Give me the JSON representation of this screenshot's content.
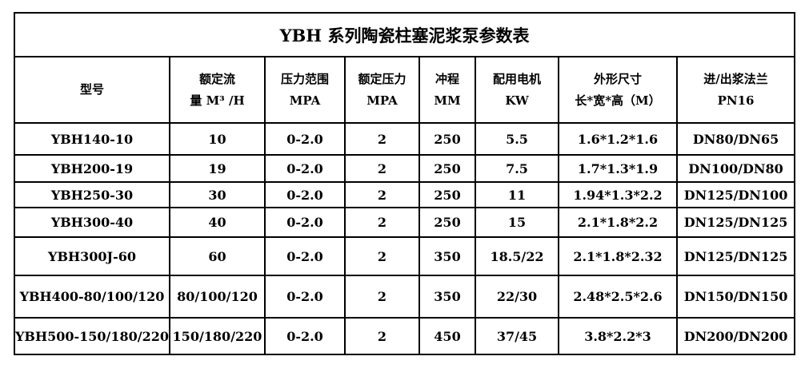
{
  "colors": {
    "background": "#ffffff",
    "border": "#000000",
    "text": "#000000"
  },
  "table": {
    "title": "YBH 系列陶瓷柱塞泥浆泵参数表",
    "columns": [
      {
        "line1": "型号",
        "line2": ""
      },
      {
        "line1": "额定流",
        "line2": "量 M³ /H"
      },
      {
        "line1": "压力范围",
        "line2": "MPA"
      },
      {
        "line1": "额定压力",
        "line2": "MPA"
      },
      {
        "line1": "冲程",
        "line2": "MM"
      },
      {
        "line1": "配用电机",
        "line2": "KW"
      },
      {
        "line1": "外形尺寸",
        "line2": "长*宽*高（M）"
      },
      {
        "line1": "进/出浆法兰",
        "line2": "PN16"
      }
    ],
    "rows": [
      [
        "YBH140-10",
        "10",
        "0-2.0",
        "2",
        "250",
        "5.5",
        "1.6*1.2*1.6",
        "DN80/DN65"
      ],
      [
        "YBH200-19",
        "19",
        "0-2.0",
        "2",
        "250",
        "7.5",
        "1.7*1.3*1.9",
        "DN100/DN80"
      ],
      [
        "YBH250-30",
        "30",
        "0-2.0",
        "2",
        "250",
        "11",
        "1.94*1.3*2.2",
        "DN125/DN100"
      ],
      [
        "YBH300-40",
        "40",
        "0-2.0",
        "2",
        "250",
        "15",
        "2.1*1.8*2.2",
        "DN125/DN125"
      ],
      [
        "YBH300J-60",
        "60",
        "0-2.0",
        "2",
        "350",
        "18.5/22",
        "2.1*1.8*2.32",
        "DN125/DN125"
      ],
      [
        "YBH400-80/100/120",
        "80/100/120",
        "0-2.0",
        "2",
        "350",
        "22/30",
        "2.48*2.5*2.6",
        "DN150/DN150"
      ],
      [
        "YBH500-150/180/220",
        "150/180/220",
        "0-2.0",
        "2",
        "450",
        "37/45",
        "3.8*2.2*3",
        "DN200/DN200"
      ]
    ]
  }
}
